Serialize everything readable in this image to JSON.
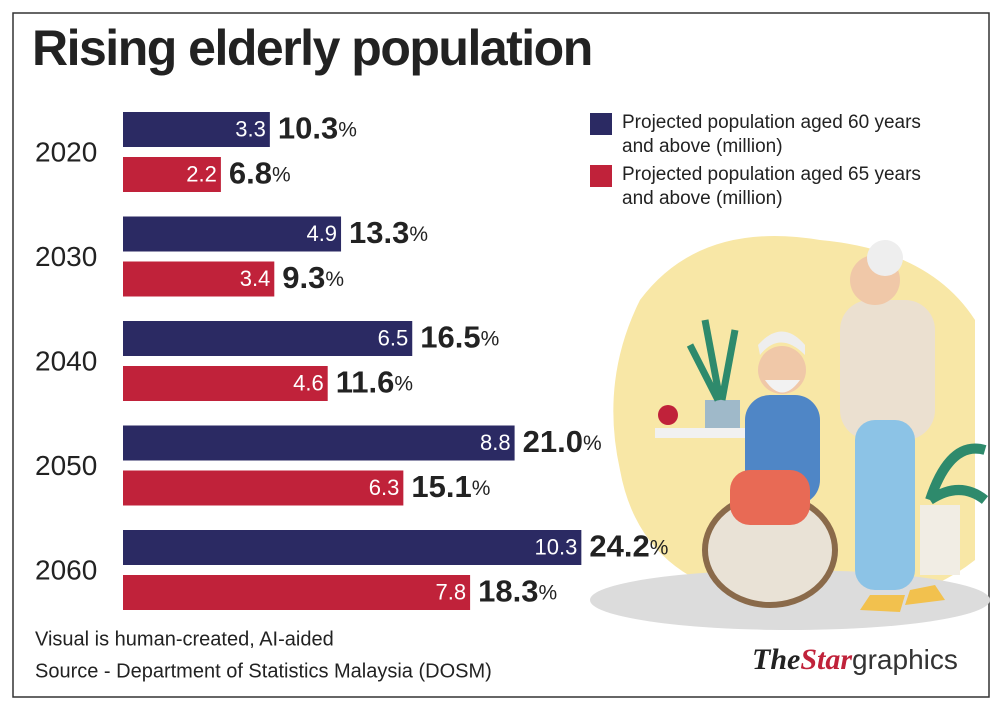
{
  "chart_data": {
    "type": "hbar-pair",
    "title": "Rising elderly population",
    "categories": [
      "2020",
      "2030",
      "2040",
      "2050",
      "2060"
    ],
    "series": [
      {
        "name": "Projected population aged 60 years and above (million)",
        "color": "#2b2a63",
        "values": [
          3.3,
          4.9,
          6.5,
          8.8,
          10.3
        ],
        "share_labels": [
          "10.3",
          "13.3",
          "16.5",
          "21.0",
          "24.2"
        ]
      },
      {
        "name": "Projected population aged 65 years and above (million)",
        "color": "#c0223a",
        "values": [
          2.2,
          3.4,
          4.6,
          6.3,
          7.8
        ],
        "share_labels": [
          "6.8",
          "9.3",
          "11.6",
          "15.1",
          "18.3"
        ]
      }
    ],
    "share_unit": "%",
    "xlim": [
      0,
      20
    ],
    "notes": [
      "Visual is human-created, AI-aided",
      "Source - Department of Statistics Malaysia (DOSM)"
    ],
    "logo": [
      "The",
      "Star",
      "graphics"
    ]
  }
}
